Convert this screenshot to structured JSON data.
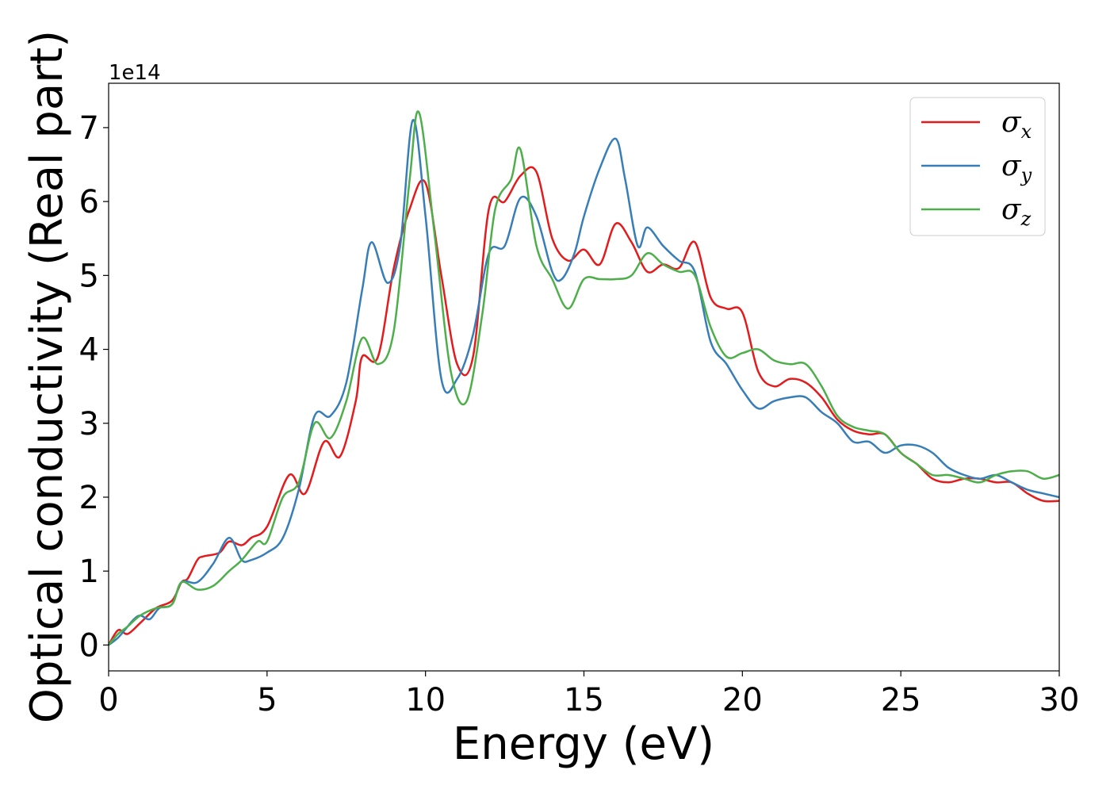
{
  "chart_data": {
    "type": "line",
    "xlabel": "Energy (eV)",
    "ylabel": "Optical conductivity (Real part)",
    "y_offset_label": "1e14",
    "xlim": [
      0,
      30
    ],
    "ylim": [
      -0.35,
      7.6
    ],
    "xticks": [
      0,
      5,
      10,
      15,
      20,
      25,
      30
    ],
    "yticks": [
      0,
      1,
      2,
      3,
      4,
      5,
      6,
      7
    ],
    "grid": false,
    "legend_position": "top-right",
    "series": [
      {
        "name": "σx",
        "symbol": "σ",
        "subscript": "x",
        "color": "#e41a1c",
        "x": [
          0,
          0.3,
          0.6,
          1.0,
          1.5,
          2.0,
          2.3,
          2.5,
          2.8,
          3.0,
          3.5,
          3.8,
          4.2,
          4.5,
          5.0,
          5.7,
          6.2,
          6.8,
          7.3,
          7.8,
          8.0,
          8.5,
          9.0,
          9.5,
          10.0,
          10.5,
          11.0,
          11.5,
          12.0,
          12.5,
          13.0,
          13.5,
          14.0,
          14.5,
          15.0,
          15.5,
          16.0,
          16.5,
          17.0,
          17.5,
          18.0,
          18.5,
          19.0,
          19.5,
          20.0,
          20.5,
          21.0,
          21.5,
          22.0,
          22.5,
          23.0,
          23.5,
          24.0,
          24.5,
          25.0,
          25.5,
          26.0,
          26.5,
          27.0,
          27.5,
          28.0,
          28.5,
          29.0,
          29.5,
          30.0
        ],
        "y": [
          0,
          0.2,
          0.15,
          0.3,
          0.5,
          0.6,
          0.85,
          0.9,
          1.15,
          1.2,
          1.25,
          1.4,
          1.35,
          1.45,
          1.6,
          2.3,
          2.05,
          2.75,
          2.55,
          3.3,
          3.9,
          3.9,
          5.1,
          5.9,
          6.25,
          5.0,
          3.8,
          3.9,
          5.9,
          6.0,
          6.35,
          6.4,
          5.5,
          5.2,
          5.35,
          5.15,
          5.7,
          5.45,
          5.05,
          5.15,
          5.1,
          5.45,
          4.7,
          4.55,
          4.5,
          3.7,
          3.5,
          3.6,
          3.55,
          3.35,
          3.05,
          2.9,
          2.85,
          2.85,
          2.6,
          2.45,
          2.25,
          2.2,
          2.25,
          2.25,
          2.2,
          2.2,
          2.05,
          1.95,
          1.95
        ]
      },
      {
        "name": "σy",
        "symbol": "σ",
        "subscript": "y",
        "color": "#377eb8",
        "x": [
          0,
          0.3,
          0.6,
          0.8,
          1.0,
          1.3,
          1.6,
          2.0,
          2.3,
          2.8,
          3.3,
          3.8,
          4.2,
          4.5,
          5.0,
          5.5,
          6.0,
          6.5,
          7.0,
          7.5,
          8.0,
          8.3,
          8.8,
          9.2,
          9.6,
          10.0,
          10.5,
          11.0,
          11.5,
          12.0,
          12.5,
          13.0,
          13.5,
          14.0,
          14.3,
          14.7,
          15.0,
          15.5,
          16.0,
          16.3,
          16.7,
          17.0,
          17.5,
          18.0,
          18.5,
          19.0,
          19.5,
          20.0,
          20.5,
          21.0,
          21.5,
          22.0,
          22.5,
          23.0,
          23.5,
          24.0,
          24.5,
          25.0,
          25.5,
          26.0,
          26.5,
          27.0,
          27.5,
          28.0,
          28.5,
          29.0,
          29.5,
          30.0
        ],
        "y": [
          0,
          0.1,
          0.25,
          0.35,
          0.4,
          0.35,
          0.5,
          0.55,
          0.85,
          0.85,
          1.1,
          1.45,
          1.15,
          1.15,
          1.25,
          1.45,
          2.1,
          3.1,
          3.1,
          3.55,
          4.8,
          5.45,
          4.9,
          5.4,
          7.1,
          5.8,
          3.6,
          3.6,
          4.2,
          5.3,
          5.4,
          6.05,
          5.8,
          5.05,
          4.95,
          5.3,
          5.8,
          6.45,
          6.85,
          6.3,
          5.4,
          5.65,
          5.4,
          5.2,
          5.05,
          4.1,
          3.8,
          3.45,
          3.2,
          3.3,
          3.35,
          3.35,
          3.15,
          3.0,
          2.75,
          2.75,
          2.6,
          2.7,
          2.7,
          2.6,
          2.4,
          2.3,
          2.25,
          2.3,
          2.2,
          2.1,
          2.05,
          2.0
        ]
      },
      {
        "name": "σz",
        "symbol": "σ",
        "subscript": "z",
        "color": "#4daf4a",
        "x": [
          0,
          0.3,
          0.6,
          1.0,
          1.5,
          2.0,
          2.3,
          2.8,
          3.3,
          3.8,
          4.2,
          4.7,
          5.0,
          5.5,
          6.0,
          6.5,
          7.0,
          7.5,
          8.0,
          8.5,
          9.0,
          9.5,
          9.8,
          10.3,
          10.8,
          11.3,
          11.8,
          12.2,
          12.7,
          13.0,
          13.5,
          14.0,
          14.5,
          15.0,
          15.5,
          16.0,
          16.5,
          17.0,
          17.5,
          18.0,
          18.5,
          19.0,
          19.5,
          20.0,
          20.5,
          21.0,
          21.5,
          22.0,
          22.5,
          23.0,
          23.5,
          24.0,
          24.5,
          25.0,
          25.5,
          26.0,
          26.5,
          27.0,
          27.5,
          28.0,
          28.5,
          29.0,
          29.5,
          30.0
        ],
        "y": [
          0,
          0.15,
          0.25,
          0.4,
          0.5,
          0.55,
          0.85,
          0.75,
          0.8,
          1.0,
          1.15,
          1.4,
          1.4,
          2.0,
          2.2,
          3.0,
          2.8,
          3.3,
          4.15,
          3.8,
          4.25,
          6.3,
          7.2,
          5.5,
          3.7,
          3.3,
          4.5,
          5.9,
          6.3,
          6.7,
          5.4,
          4.95,
          4.55,
          4.95,
          4.95,
          4.95,
          5.0,
          5.3,
          5.15,
          5.05,
          5.0,
          4.3,
          3.9,
          3.95,
          4.0,
          3.85,
          3.8,
          3.8,
          3.5,
          3.1,
          2.95,
          2.9,
          2.85,
          2.6,
          2.45,
          2.3,
          2.3,
          2.25,
          2.2,
          2.3,
          2.35,
          2.35,
          2.25,
          2.3
        ]
      }
    ]
  }
}
